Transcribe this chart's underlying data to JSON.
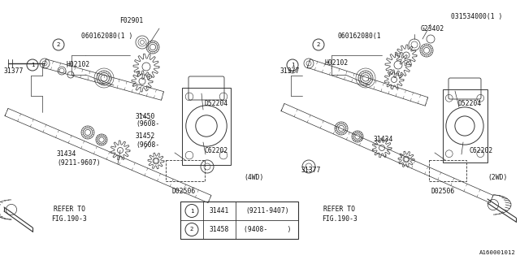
{
  "bg_color": "#ffffff",
  "line_color": "#333333",
  "text_color": "#111111",
  "part_number": "A160001012",
  "fs": 5.8,
  "legend_items": [
    {
      "symbol": "1",
      "part": "31441",
      "note": "(9211-9407)"
    },
    {
      "symbol": "2",
      "part": "31458",
      "note": "(9408-     )"
    }
  ]
}
